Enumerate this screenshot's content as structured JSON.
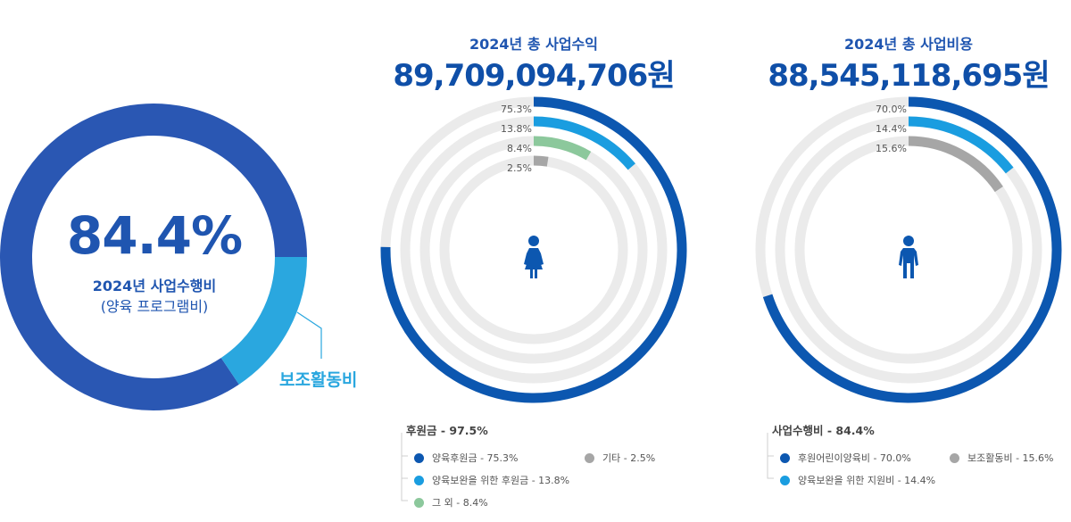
{
  "chart_data": [
    {
      "type": "pie",
      "center_value": "84.4%",
      "center_title": "2024년 사업수행비",
      "center_subtitle": "(양육 프로그램비)",
      "slices": [
        {
          "name": "사업수행비",
          "value": 84.4,
          "color": "#2a57b3"
        },
        {
          "name": "보조활동비",
          "value": 15.6,
          "color": "#2aa7df"
        }
      ],
      "callout": "보조활동비"
    },
    {
      "type": "radial-bar",
      "title": "2024년 총 사업수익",
      "amount": "89,709,094,706원",
      "series": [
        {
          "name": "양육후원금",
          "value": 75.3,
          "label": "75.3%",
          "color": "#0c57b0"
        },
        {
          "name": "양육보완을 위한 후원금",
          "value": 13.8,
          "label": "13.8%",
          "color": "#1a9de0"
        },
        {
          "name": "그 외",
          "value": 8.4,
          "label": "8.4%",
          "color": "#8cc89c"
        },
        {
          "name": "기타",
          "value": 2.5,
          "label": "2.5%",
          "color": "#a6a6a6"
        }
      ],
      "legend_title": "후원금 - 97.5%",
      "legend": [
        {
          "text": "양육후원금 - 75.3%",
          "color": "#0c57b0"
        },
        {
          "text": "양육보완을 위한 후원금 - 13.8%",
          "color": "#1a9de0"
        },
        {
          "text": "그 외 - 8.4%",
          "color": "#8cc89c"
        },
        {
          "text": "기타 - 2.5%",
          "color": "#a6a6a6"
        }
      ]
    },
    {
      "type": "radial-bar",
      "title": "2024년 총 사업비용",
      "amount": "88,545,118,695원",
      "series": [
        {
          "name": "후원어린이양육비",
          "value": 70.0,
          "label": "70.0%",
          "color": "#0c57b0"
        },
        {
          "name": "양육보완을 위한 지원비",
          "value": 14.4,
          "label": "14.4%",
          "color": "#1a9de0"
        },
        {
          "name": "보조활동비",
          "value": 15.6,
          "label": "15.6%",
          "color": "#a6a6a6"
        }
      ],
      "legend_title": "사업수행비 - 84.4%",
      "legend": [
        {
          "text": "후원어린이양육비 - 70.0%",
          "color": "#0c57b0"
        },
        {
          "text": "보조활동비 - 15.6%",
          "color": "#a6a6a6"
        },
        {
          "text": "양육보완을 위한 지원비 - 14.4%",
          "color": "#1a9de0"
        }
      ]
    }
  ],
  "colors": {
    "track": "#ebebeb",
    "figure": "#0c57b0",
    "callout_line": "#2aa7df"
  },
  "icons": [
    "girl-figure-icon",
    "boy-figure-icon"
  ]
}
